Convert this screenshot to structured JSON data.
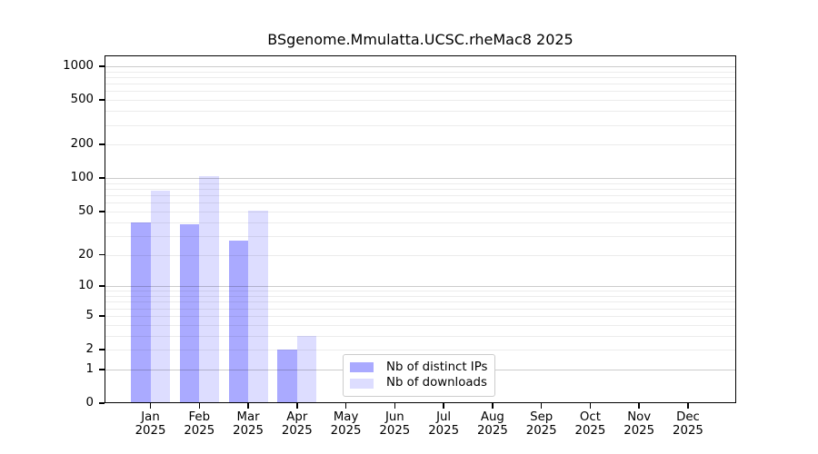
{
  "chart_data": {
    "type": "bar",
    "title": "BSgenome.Mmulatta.UCSC.rheMac8 2025",
    "categories": [
      "Jan",
      "Feb",
      "Mar",
      "Apr",
      "May",
      "Jun",
      "Jul",
      "Aug",
      "Sep",
      "Oct",
      "Nov",
      "Dec"
    ],
    "category_year": "2025",
    "series": [
      {
        "name": "Nb of distinct IPs",
        "color": "#aaaaff",
        "values": [
          40,
          38,
          27,
          2,
          0,
          0,
          0,
          0,
          0,
          0,
          0,
          0
        ]
      },
      {
        "name": "Nb of downloads",
        "color": "#ddddff",
        "values": [
          77,
          104,
          51,
          3,
          0,
          0,
          0,
          0,
          0,
          0,
          0,
          0
        ]
      }
    ],
    "y_axis": {
      "scale": "log10(1+x)",
      "tick_labels": [
        0,
        1,
        2,
        5,
        10,
        20,
        50,
        100,
        200,
        500,
        1000
      ],
      "major_gridlines": [
        1,
        10,
        100,
        1000
      ],
      "minor_gridlines": [
        2,
        3,
        4,
        5,
        6,
        7,
        8,
        9,
        20,
        30,
        40,
        50,
        60,
        70,
        80,
        90,
        200,
        300,
        400,
        500,
        600,
        700,
        800,
        900
      ],
      "range_top_value": 1250
    },
    "legend": {
      "position": "lower-center",
      "entries": [
        "Nb of distinct IPs",
        "Nb of downloads"
      ]
    },
    "grid": "on",
    "colors": {
      "spine": "#000000",
      "text": "#000000",
      "legend_border": "#cccccc",
      "background": "#ffffff"
    }
  }
}
